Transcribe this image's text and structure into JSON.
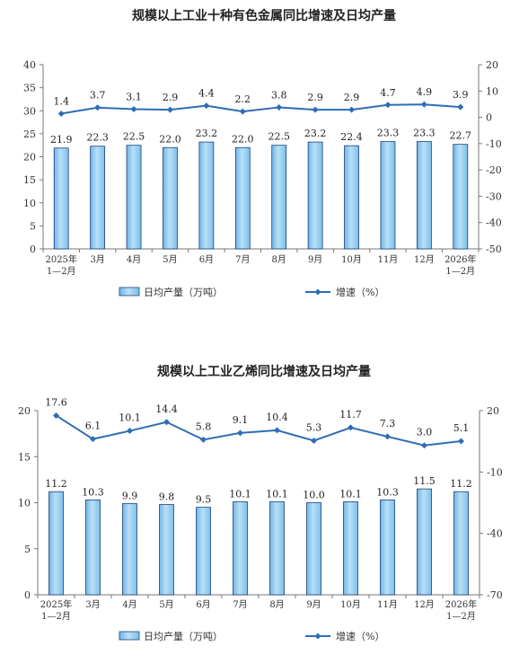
{
  "chart_data": [
    {
      "type": "bar+line",
      "title": "规模以上工业十种有色金属同比增速及日均产量",
      "categories": [
        "2025年\n1—2月",
        "3月",
        "4月",
        "5月",
        "6月",
        "7月",
        "8月",
        "9月",
        "10月",
        "11月",
        "12月",
        "2026年\n1—2月"
      ],
      "bar_series": {
        "name": "日均产量（万吨）",
        "values": [
          21.9,
          22.3,
          22.5,
          22.0,
          23.2,
          22.0,
          22.5,
          23.2,
          22.4,
          23.3,
          23.3,
          22.7
        ],
        "labels": [
          "21.9",
          "22.3",
          "22.5",
          "22.0",
          "23.2",
          "22.0",
          "22.5",
          "23.2",
          "22.4",
          "23.3",
          "23.3",
          "22.7"
        ],
        "color": "#8ecbf0"
      },
      "line_series": {
        "name": "增速（%）",
        "values": [
          1.4,
          3.7,
          3.1,
          2.9,
          4.4,
          2.2,
          3.8,
          2.9,
          2.9,
          4.7,
          4.9,
          3.9
        ],
        "labels": [
          "1.4",
          "3.7",
          "3.1",
          "2.9",
          "4.4",
          "2.2",
          "3.8",
          "2.9",
          "2.9",
          "4.7",
          "4.9",
          "3.9"
        ],
        "color": "#2e6db4"
      },
      "y_left": {
        "min": 0,
        "max": 40,
        "ticks": [
          0,
          5,
          10,
          15,
          20,
          25,
          30,
          35,
          40
        ]
      },
      "y_right": {
        "min": -50,
        "max": 20,
        "ticks": [
          -50,
          -40,
          -30,
          -20,
          -10,
          0,
          10,
          20
        ]
      },
      "grid": false,
      "legend_position": "bottom"
    },
    {
      "type": "bar+line",
      "title": "规模以上工业乙烯同比增速及日均产量",
      "categories": [
        "2025年\n1—2月",
        "3月",
        "4月",
        "5月",
        "6月",
        "7月",
        "8月",
        "9月",
        "10月",
        "11月",
        "12月",
        "2026年\n1—2月"
      ],
      "bar_series": {
        "name": "日均产量（万吨）",
        "values": [
          11.2,
          10.3,
          9.9,
          9.8,
          9.5,
          10.1,
          10.1,
          10.0,
          10.1,
          10.3,
          11.5,
          11.2
        ],
        "labels": [
          "11.2",
          "10.3",
          "9.9",
          "9.8",
          "9.5",
          "10.1",
          "10.1",
          "10.0",
          "10.1",
          "10.3",
          "11.5",
          "11.2"
        ],
        "color": "#8ecbf0"
      },
      "line_series": {
        "name": "增速（%）",
        "values": [
          17.6,
          6.1,
          10.1,
          14.4,
          5.8,
          9.1,
          10.4,
          5.3,
          11.7,
          7.3,
          3.0,
          5.1
        ],
        "labels": [
          "17.6",
          "6.1",
          "10.1",
          "14.4",
          "5.8",
          "9.1",
          "10.4",
          "5.3",
          "11.7",
          "7.3",
          "3.0",
          "5.1"
        ],
        "color": "#2e6db4"
      },
      "y_left": {
        "min": 0,
        "max": 20,
        "ticks": [
          0,
          5,
          10,
          15,
          20
        ]
      },
      "y_right": {
        "min": -70,
        "max": 20,
        "ticks": [
          -70,
          -40,
          -10,
          20
        ]
      },
      "grid": false,
      "legend_position": "bottom"
    }
  ]
}
